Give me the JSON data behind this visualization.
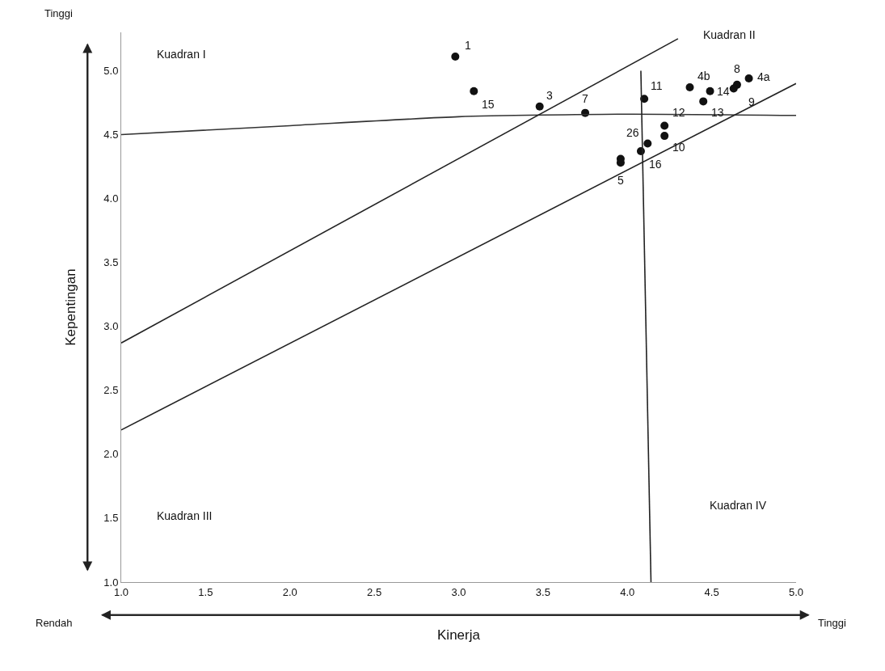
{
  "chart_data": {
    "type": "scatter",
    "xlabel": "Kinerja",
    "ylabel": "Kepentingan",
    "xlim": [
      1.0,
      5.0
    ],
    "ylim": [
      1.0,
      5.3
    ],
    "xticks": [
      {
        "value": 1.0,
        "label": "1.0"
      },
      {
        "value": 1.5,
        "label": "1.5"
      },
      {
        "value": 2.0,
        "label": "2.0"
      },
      {
        "value": 2.5,
        "label": "2.5"
      },
      {
        "value": 3.0,
        "label": "3.0"
      },
      {
        "value": 3.5,
        "label": "3.5"
      },
      {
        "value": 4.0,
        "label": "4.0"
      },
      {
        "value": 4.5,
        "label": "4.5"
      },
      {
        "value": 5.0,
        "label": "5.0"
      }
    ],
    "yticks": [
      {
        "value": 1.0,
        "label": "1.0"
      },
      {
        "value": 1.5,
        "label": "1.5"
      },
      {
        "value": 2.0,
        "label": "2.0"
      },
      {
        "value": 2.5,
        "label": "2.5"
      },
      {
        "value": 3.0,
        "label": "3.0"
      },
      {
        "value": 3.5,
        "label": "3.5"
      },
      {
        "value": 4.0,
        "label": "4.0"
      },
      {
        "value": 4.5,
        "label": "4.5"
      },
      {
        "value": 5.0,
        "label": "5.0"
      }
    ],
    "series": [
      {
        "color": "#111111",
        "marker": "circle",
        "x": [
          2.98,
          3.09,
          3.48,
          3.75,
          4.1,
          4.37,
          4.49,
          4.45,
          4.65,
          4.63,
          4.72,
          4.22,
          4.22,
          4.12,
          4.08,
          3.96,
          3.96
        ],
        "values": [
          5.11,
          4.84,
          4.72,
          4.67,
          4.78,
          4.87,
          4.84,
          4.76,
          4.89,
          4.86,
          4.94,
          4.57,
          4.49,
          4.43,
          4.37,
          4.31,
          4.28
        ]
      },
      {
        "type": "line",
        "color": "#333333",
        "x": [
          1.0,
          2.0,
          3.0,
          4.0,
          5.0
        ],
        "values": [
          4.5,
          4.57,
          4.64,
          4.66,
          4.65
        ]
      },
      {
        "type": "line",
        "color": "#222222",
        "x": [
          4.08,
          4.14
        ],
        "values": [
          5.0,
          1.0
        ]
      },
      {
        "type": "line",
        "color": "#222222",
        "x": [
          1.0,
          4.3
        ],
        "values": [
          2.87,
          5.25
        ]
      },
      {
        "type": "line",
        "color": "#222222",
        "x": [
          1.0,
          5.0
        ],
        "values": [
          2.19,
          4.9
        ]
      }
    ],
    "annotations": [
      {
        "text": "1",
        "x": 2.98,
        "y": 5.11
      },
      {
        "text": "15",
        "x": 3.09,
        "y": 4.84
      },
      {
        "text": "3",
        "x": 3.48,
        "y": 4.72
      },
      {
        "text": "7",
        "x": 3.75,
        "y": 4.67
      },
      {
        "text": "11",
        "x": 4.1,
        "y": 4.78
      },
      {
        "text": "4b",
        "x": 4.37,
        "y": 4.87
      },
      {
        "text": "14",
        "x": 4.49,
        "y": 4.84
      },
      {
        "text": "13",
        "x": 4.45,
        "y": 4.76
      },
      {
        "text": "8",
        "x": 4.65,
        "y": 4.89
      },
      {
        "text": "9",
        "x": 4.63,
        "y": 4.86
      },
      {
        "text": "4a",
        "x": 4.72,
        "y": 4.94
      },
      {
        "text": "12",
        "x": 4.22,
        "y": 4.57
      },
      {
        "text": "10",
        "x": 4.22,
        "y": 4.49
      },
      {
        "text": "26",
        "x": 4.12,
        "y": 4.43
      },
      {
        "text": "16",
        "x": 4.08,
        "y": 4.37
      },
      {
        "text": "5",
        "x": 3.96,
        "y": 4.28
      },
      "Kuadran I",
      "Kuadran II",
      "Kuadran III",
      "Kuadran IV",
      "Tinggi",
      "Rendah",
      "Tinggi"
    ]
  }
}
